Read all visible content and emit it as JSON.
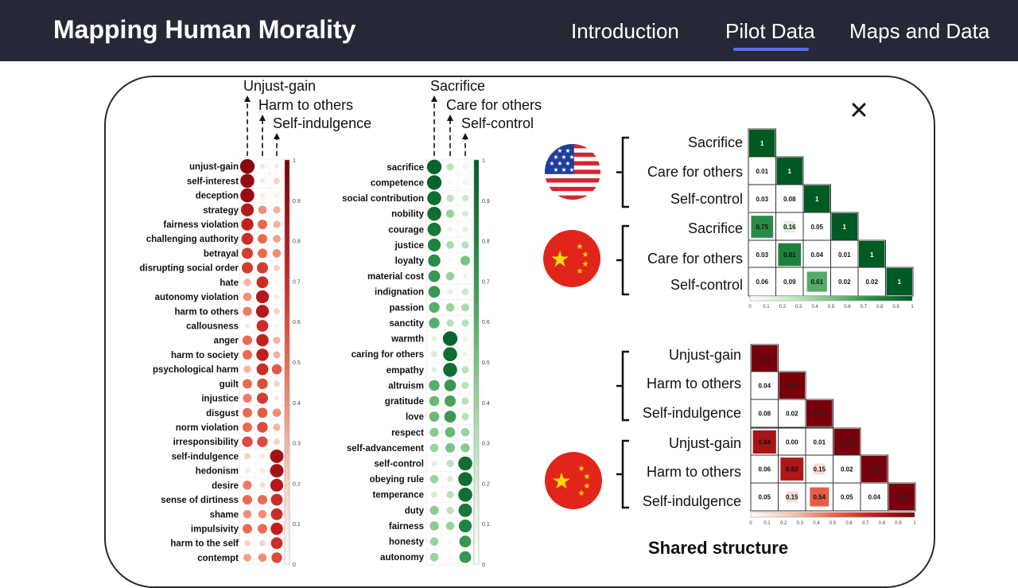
{
  "header": {
    "title": "Mapping Human Morality",
    "nav": [
      "Introduction",
      "Pilot Data",
      "Maps and Data"
    ],
    "active_index": 1
  },
  "colors": {
    "topbar": "#262838",
    "active_underline": "#5b6bf0",
    "red_dark": "#8b0a10",
    "green_dark": "#0b6b2a"
  },
  "figure": {
    "caption": "Shared structure",
    "red_column_labels": [
      "Unjust-gain",
      "Harm to others",
      "Self-indulgence"
    ],
    "green_column_labels": [
      "Sacrifice",
      "Care for others",
      "Self-control"
    ],
    "colorbar_ticks": [
      "1",
      "0.9",
      "0.8",
      "0.7",
      "0.6",
      "0.5",
      "0.4",
      "0.3",
      "0.2",
      "0.1",
      "0"
    ],
    "matrix_ticks": [
      "0",
      "0.1",
      "0.2",
      "0.3",
      "0.4",
      "0.5",
      "0.6",
      "0.7",
      "0.8",
      "0.9",
      "1"
    ],
    "country_icons": [
      "usa-flag",
      "china-flag"
    ]
  },
  "chart_data": [
    {
      "type": "heatmap",
      "name": "red-dot-plot",
      "columns": [
        "Unjust-gain",
        "Harm to others",
        "Self-indulgence"
      ],
      "rows": [
        "unjust-gain",
        "self-interest",
        "deception",
        "strategy",
        "fairness violation",
        "challenging authority",
        "betrayal",
        "disrupting social order",
        "hate",
        "autonomy violation",
        "harm to others",
        "callousness",
        "anger",
        "harm to society",
        "psychological harm",
        "guilt",
        "injustice",
        "disgust",
        "norm violation",
        "irresponsibility",
        "self-indulgence",
        "hedonism",
        "desire",
        "sense of dirtiness",
        "shame",
        "impulsivity",
        "harm to the self",
        "contempt"
      ],
      "values": [
        [
          0.95,
          0.1,
          0.1
        ],
        [
          0.9,
          0.1,
          0.2
        ],
        [
          0.9,
          0.1,
          0.05
        ],
        [
          0.8,
          0.4,
          0.3
        ],
        [
          0.75,
          0.5,
          0.3
        ],
        [
          0.7,
          0.5,
          0.35
        ],
        [
          0.65,
          0.5,
          0.4
        ],
        [
          0.65,
          0.65,
          0.2
        ],
        [
          0.3,
          0.7,
          0.05
        ],
        [
          0.4,
          0.8,
          0.1
        ],
        [
          0.45,
          0.8,
          0.2
        ],
        [
          0.1,
          0.7,
          0.05
        ],
        [
          0.5,
          0.75,
          0.3
        ],
        [
          0.5,
          0.75,
          0.3
        ],
        [
          0.3,
          0.7,
          0.55
        ],
        [
          0.5,
          0.6,
          0.2
        ],
        [
          0.45,
          0.65,
          0.1
        ],
        [
          0.5,
          0.55,
          0.4
        ],
        [
          0.5,
          0.6,
          0.3
        ],
        [
          0.6,
          0.6,
          0.2
        ],
        [
          0.2,
          0.1,
          0.85
        ],
        [
          0.1,
          0.1,
          0.85
        ],
        [
          0.45,
          0.15,
          0.8
        ],
        [
          0.5,
          0.5,
          0.7
        ],
        [
          0.4,
          0.4,
          0.7
        ],
        [
          0.5,
          0.5,
          0.75
        ],
        [
          0.2,
          0.2,
          0.7
        ],
        [
          0.35,
          0.4,
          0.6
        ]
      ],
      "ylim": [
        0,
        1
      ]
    },
    {
      "type": "heatmap",
      "name": "green-dot-plot",
      "columns": [
        "Sacrifice",
        "Care for others",
        "Self-control"
      ],
      "rows": [
        "sacrifice",
        "competence",
        "social contribution",
        "nobility",
        "courage",
        "justice",
        "loyalty",
        "material cost",
        "indignation",
        "passion",
        "sanctity",
        "warmth",
        "caring for others",
        "empathy",
        "altruism",
        "gratitude",
        "love",
        "respect",
        "self-advancement",
        "self-control",
        "obeying rule",
        "temperance",
        "duty",
        "fairness",
        "honesty",
        "autonomy"
      ],
      "values": [
        [
          0.95,
          0.3,
          0.1
        ],
        [
          0.95,
          0.05,
          0.1
        ],
        [
          0.9,
          0.3,
          0.25
        ],
        [
          0.9,
          0.4,
          0.2
        ],
        [
          0.85,
          0.1,
          0.15
        ],
        [
          0.8,
          0.35,
          0.3
        ],
        [
          0.75,
          0.05,
          0.5
        ],
        [
          0.7,
          0.4,
          0.1
        ],
        [
          0.7,
          0.15,
          0.25
        ],
        [
          0.6,
          0.4,
          0.35
        ],
        [
          0.6,
          0.3,
          0.3
        ],
        [
          0.15,
          0.95,
          0.1
        ],
        [
          0.2,
          0.9,
          0.1
        ],
        [
          0.15,
          0.9,
          0.3
        ],
        [
          0.6,
          0.7,
          0.3
        ],
        [
          0.55,
          0.65,
          0.3
        ],
        [
          0.55,
          0.7,
          0.3
        ],
        [
          0.45,
          0.55,
          0.4
        ],
        [
          0.4,
          0.5,
          0.45
        ],
        [
          0.15,
          0.3,
          0.9
        ],
        [
          0.4,
          0.2,
          0.9
        ],
        [
          0.2,
          0.3,
          0.9
        ],
        [
          0.45,
          0.3,
          0.85
        ],
        [
          0.45,
          0.4,
          0.8
        ],
        [
          0.4,
          0.05,
          0.7
        ],
        [
          0.4,
          0.05,
          0.7
        ]
      ],
      "ylim": [
        0,
        1
      ]
    },
    {
      "type": "heatmap",
      "name": "green-correlation-matrix",
      "labels": [
        "Sacrifice",
        "Care for others",
        "Self-control",
        "Sacrifice",
        "Care for others",
        "Self-control"
      ],
      "groups": [
        "usa",
        "usa",
        "usa",
        "china",
        "china",
        "china"
      ],
      "values": [
        [
          "1"
        ],
        [
          "0.01",
          "1"
        ],
        [
          "0.03",
          "0.08",
          "1"
        ],
        [
          "0.75",
          "0.16",
          "0.05",
          "1"
        ],
        [
          "0.03",
          "0.81",
          "0.04",
          "0.01",
          "1"
        ],
        [
          "0.06",
          "0.09",
          "0.61",
          "0.02",
          "0.02",
          "1"
        ]
      ],
      "ylim": [
        0,
        1
      ]
    },
    {
      "type": "heatmap",
      "name": "red-correlation-matrix",
      "labels": [
        "Unjust-gain",
        "Harm to others",
        "Self-indulgence",
        "Unjust-gain",
        "Harm to others",
        "Self-indulgence"
      ],
      "groups": [
        "usa",
        "usa",
        "usa",
        "china",
        "china",
        "china"
      ],
      "values": [
        [
          "1.00"
        ],
        [
          "0.04",
          "1.00"
        ],
        [
          "0.08",
          "0.02",
          "1.00"
        ],
        [
          "0.84",
          "0.00",
          "0.01",
          "1.00"
        ],
        [
          "0.06",
          "0.82",
          "0.15",
          "0.02",
          "1.00"
        ],
        [
          "0.05",
          "0.15",
          "0.54",
          "0.05",
          "0.04",
          "1.00"
        ]
      ],
      "ylim": [
        0,
        1
      ]
    }
  ]
}
